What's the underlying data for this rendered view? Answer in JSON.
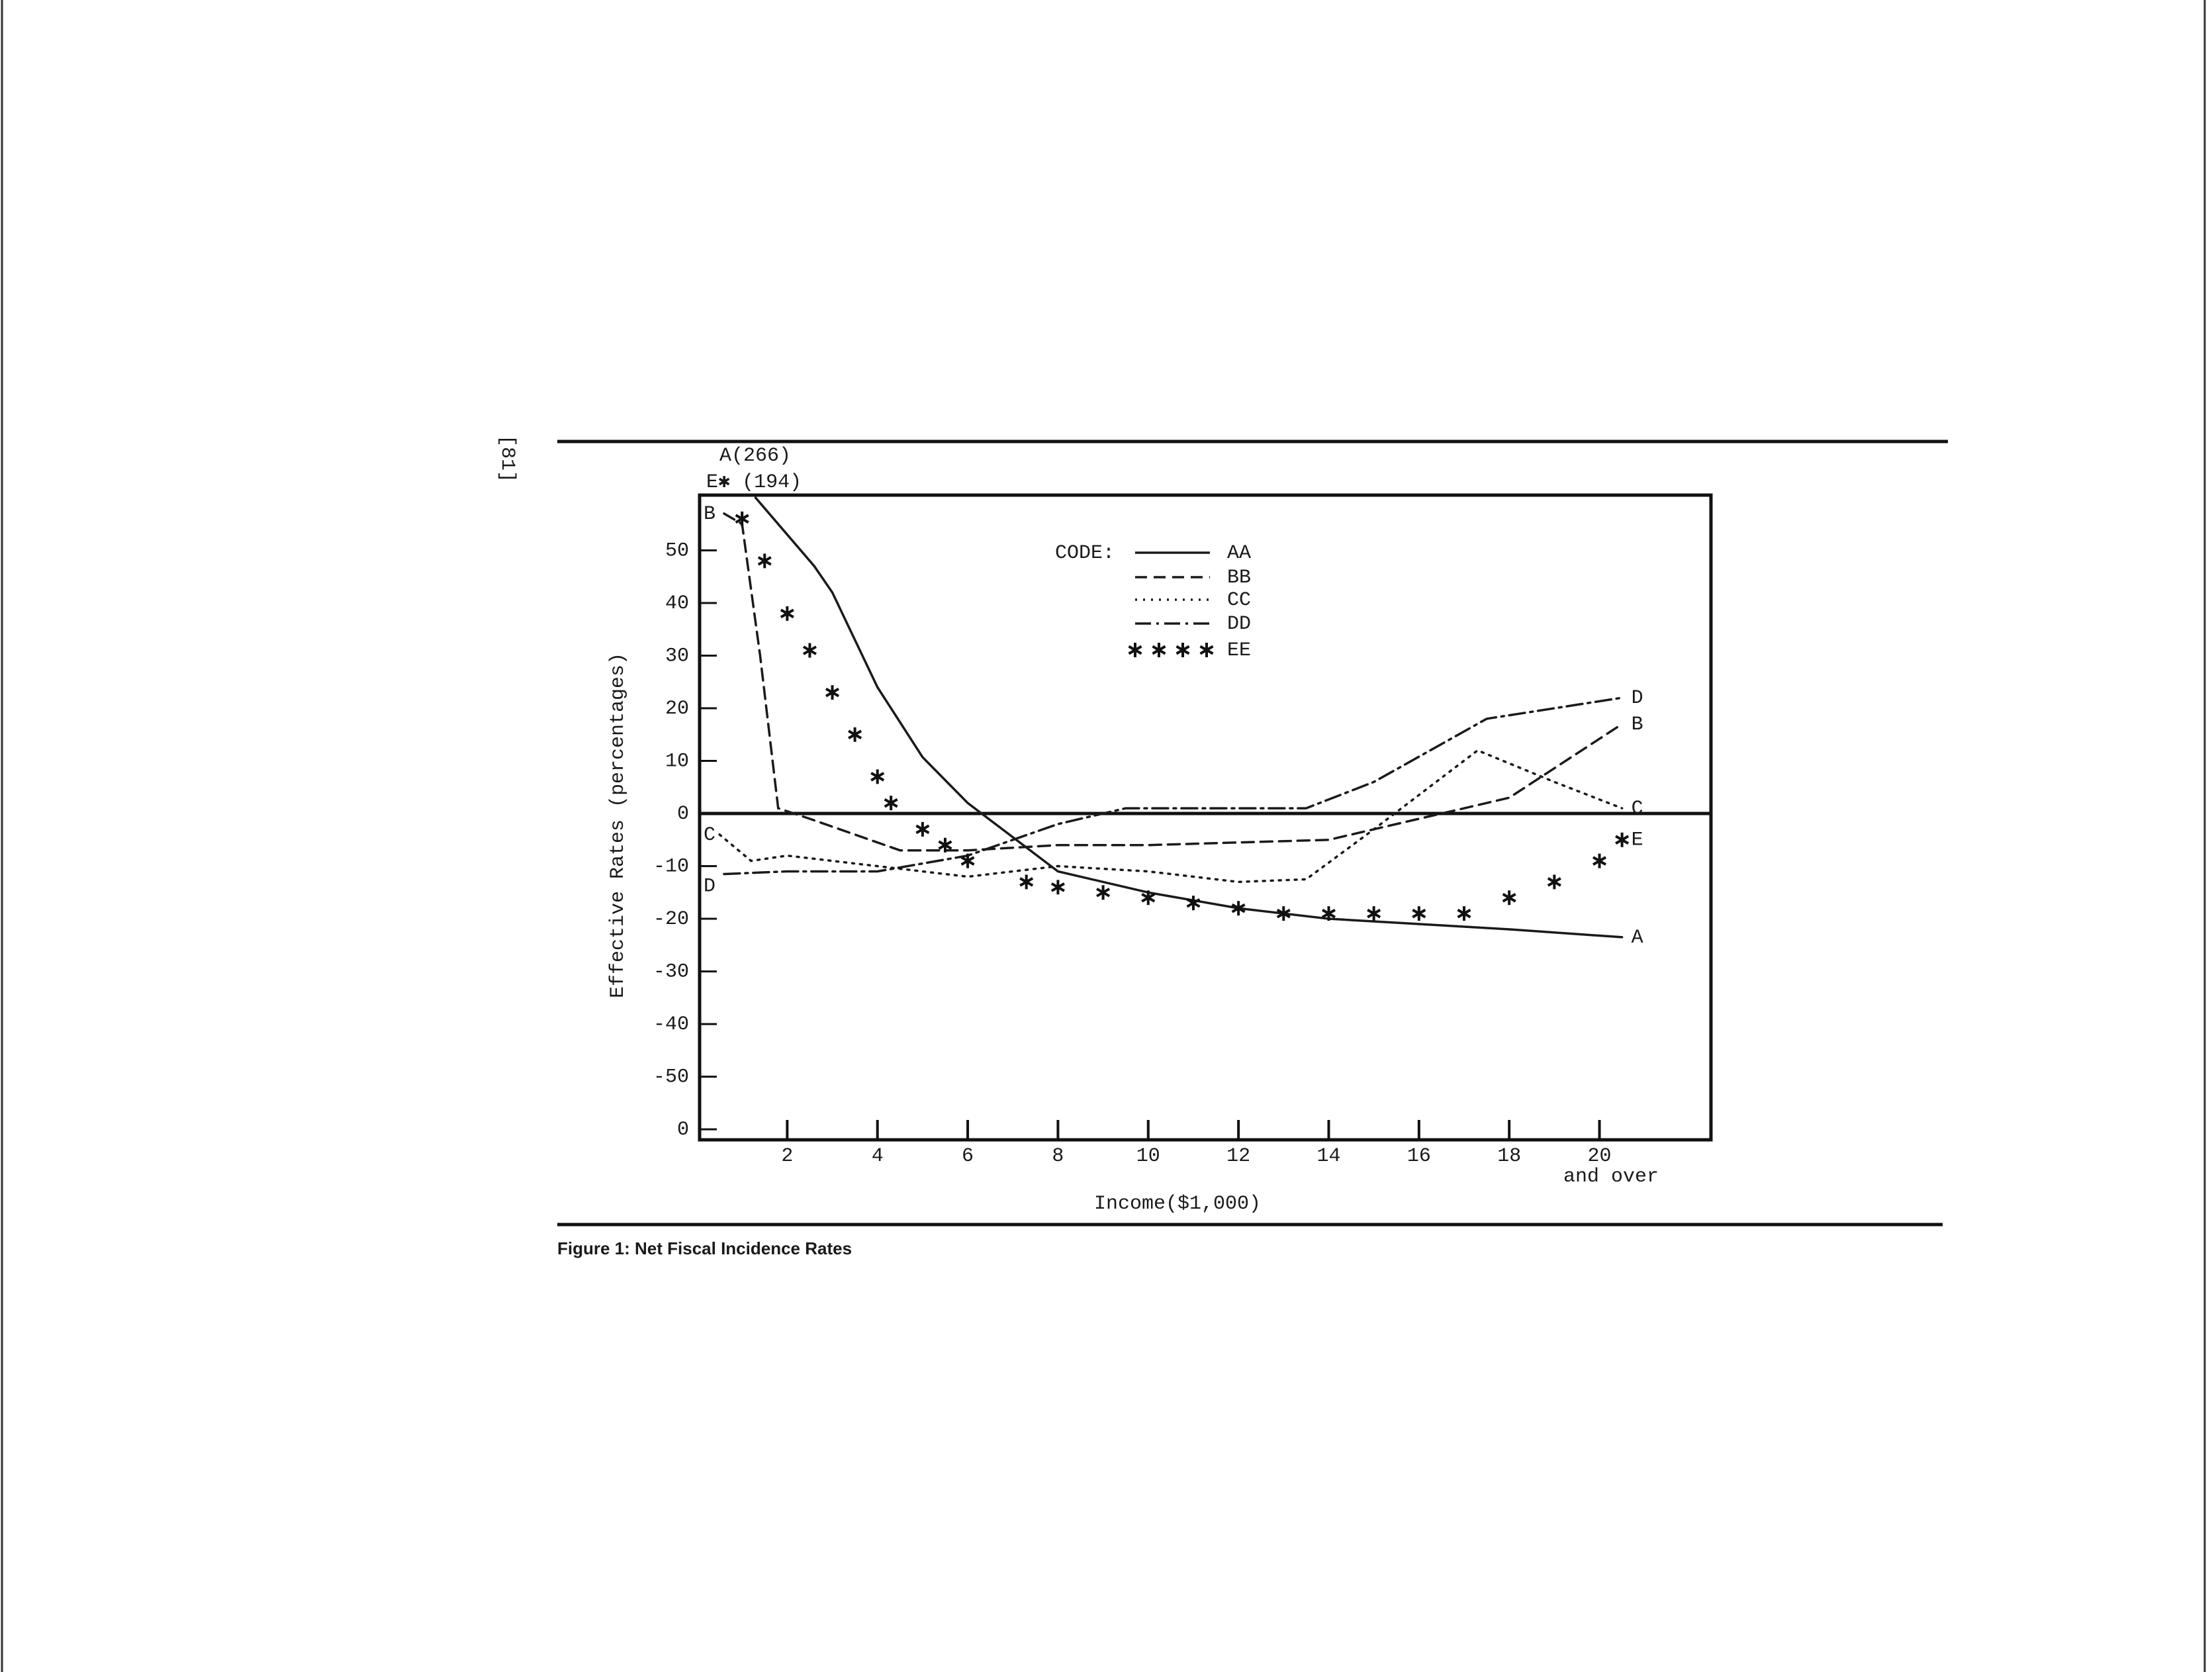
{
  "page": {
    "page_number": "[81]",
    "caption": "Figure 1:  Net Fiscal Incidence Rates"
  },
  "chart_data": {
    "type": "line",
    "xlabel": "Income($1,000)",
    "ylabel": "Effective Rates (percentages)",
    "x_note": "and over",
    "legend_title": "CODE:",
    "xlim": [
      0,
      22.5
    ],
    "ylim": [
      -62,
      60.5
    ],
    "xticks": [
      2,
      4,
      6,
      8,
      10,
      12,
      14,
      16,
      18,
      20
    ],
    "yticks": [
      50,
      40,
      30,
      20,
      10,
      0,
      -10,
      -20,
      -30,
      -40,
      -50,
      {
        "value": -60,
        "label": "0"
      }
    ],
    "zero_line": true,
    "grid": false,
    "series": [
      {
        "name": "AA",
        "color": "#1a1a1a",
        "style": "solid",
        "start_label": "A(266)",
        "end_label": "A",
        "x": [
          1.3,
          2.6,
          3.0,
          4,
          5,
          6,
          8,
          10,
          12,
          14,
          16,
          18,
          20.5
        ],
        "values": [
          60,
          47,
          42,
          24,
          10.7,
          2,
          -11,
          -15,
          -18,
          -20,
          -21,
          -22,
          -23.5
        ]
      },
      {
        "name": "BB",
        "color": "#1a1a1a",
        "style": "dashed",
        "start_label": "B",
        "end_label": "B",
        "x": [
          0.6,
          1,
          1.4,
          1.8,
          2.5,
          4.5,
          6,
          8,
          10,
          12,
          14,
          16,
          18,
          20.5
        ],
        "values": [
          57,
          55,
          30,
          1,
          -1,
          -7,
          -7,
          -6,
          -6,
          -5.5,
          -5,
          -1,
          3,
          17
        ]
      },
      {
        "name": "CC",
        "color": "#1a1a1a",
        "style": "dotted",
        "start_label": "C",
        "end_label": "C",
        "x": [
          0.5,
          1.2,
          2,
          3,
          4,
          6,
          8,
          10,
          12,
          13.5,
          15,
          17.3,
          19,
          20.5
        ],
        "values": [
          -4,
          -9,
          -8,
          -9,
          -10,
          -12,
          -10,
          -11,
          -13,
          -12.5,
          -3,
          12,
          6,
          1
        ]
      },
      {
        "name": "DD",
        "color": "#1a1a1a",
        "style": "dashdot",
        "start_label": "D",
        "end_label": "D",
        "x": [
          0.6,
          2,
          4,
          6,
          8,
          9.5,
          12,
          13.5,
          15,
          17.5,
          20.5
        ],
        "values": [
          -11.5,
          -11,
          -11,
          -8,
          -2,
          1,
          1,
          1,
          6,
          18,
          22
        ]
      },
      {
        "name": "EE",
        "color": "#1a1a1a",
        "style": "star",
        "start_label": "E✱ (194)",
        "end_label": "E",
        "x": [
          1,
          1.5,
          2,
          2.5,
          3,
          3.5,
          4,
          4.3,
          5,
          5.5,
          6,
          7.3,
          8,
          9,
          10,
          11,
          12,
          13,
          14,
          15,
          16,
          17,
          18,
          19,
          20,
          20.5
        ],
        "values": [
          56,
          48,
          38,
          31,
          23,
          15,
          7,
          2,
          -3,
          -6,
          -9,
          -13,
          -14,
          -15,
          -16,
          -17,
          -18,
          -19,
          -19,
          -19,
          -19,
          -19,
          -16,
          -13,
          -9,
          -5
        ]
      }
    ]
  }
}
